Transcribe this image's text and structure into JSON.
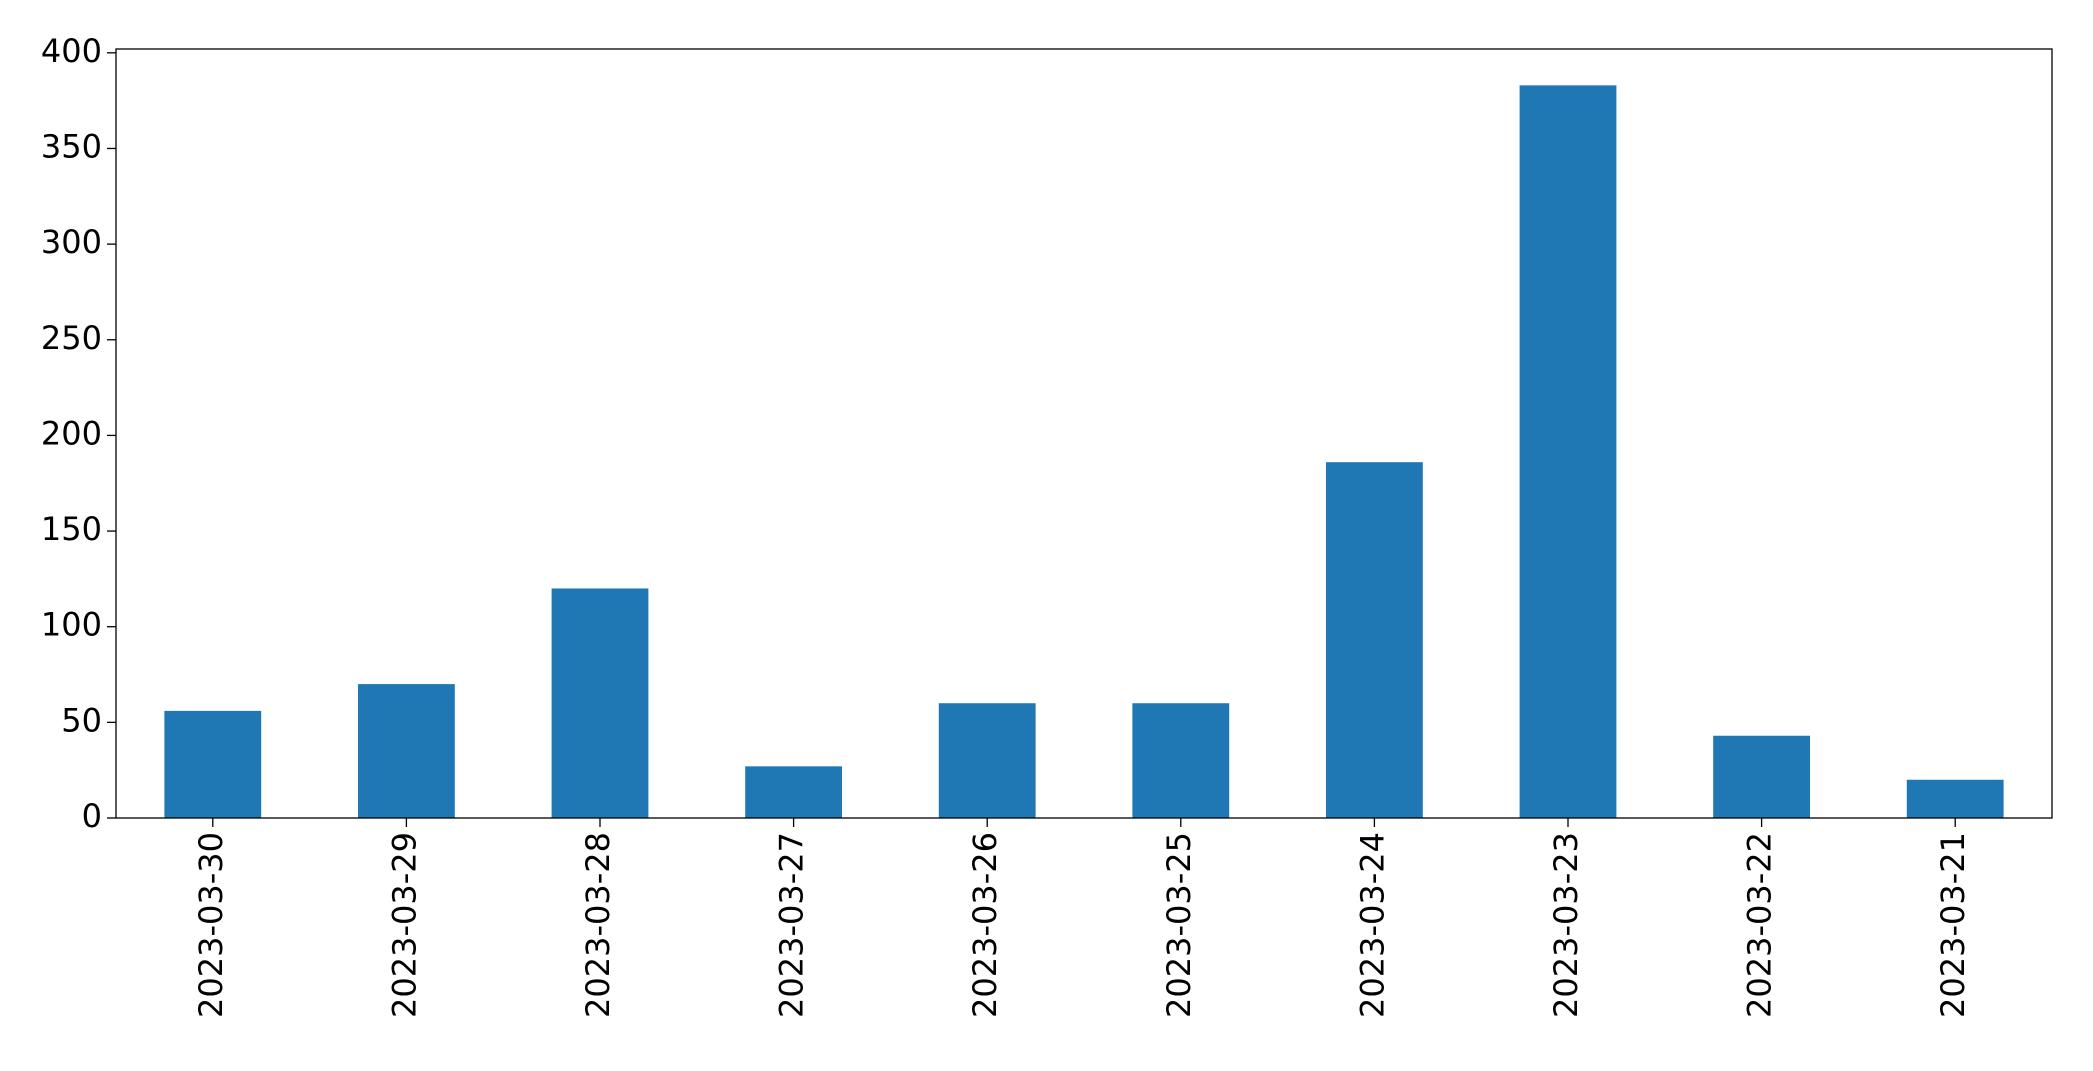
{
  "chart_data": {
    "type": "bar",
    "categories": [
      "2023-03-30",
      "2023-03-29",
      "2023-03-28",
      "2023-03-27",
      "2023-03-26",
      "2023-03-25",
      "2023-03-24",
      "2023-03-23",
      "2023-03-22",
      "2023-03-21"
    ],
    "values": [
      56,
      70,
      120,
      27,
      60,
      60,
      186,
      383,
      43,
      20
    ],
    "color": "#1f77b4",
    "ylim": [
      0,
      402
    ],
    "yticks": [
      0,
      50,
      100,
      150,
      200,
      250,
      300,
      350,
      400
    ],
    "grid": false
  }
}
